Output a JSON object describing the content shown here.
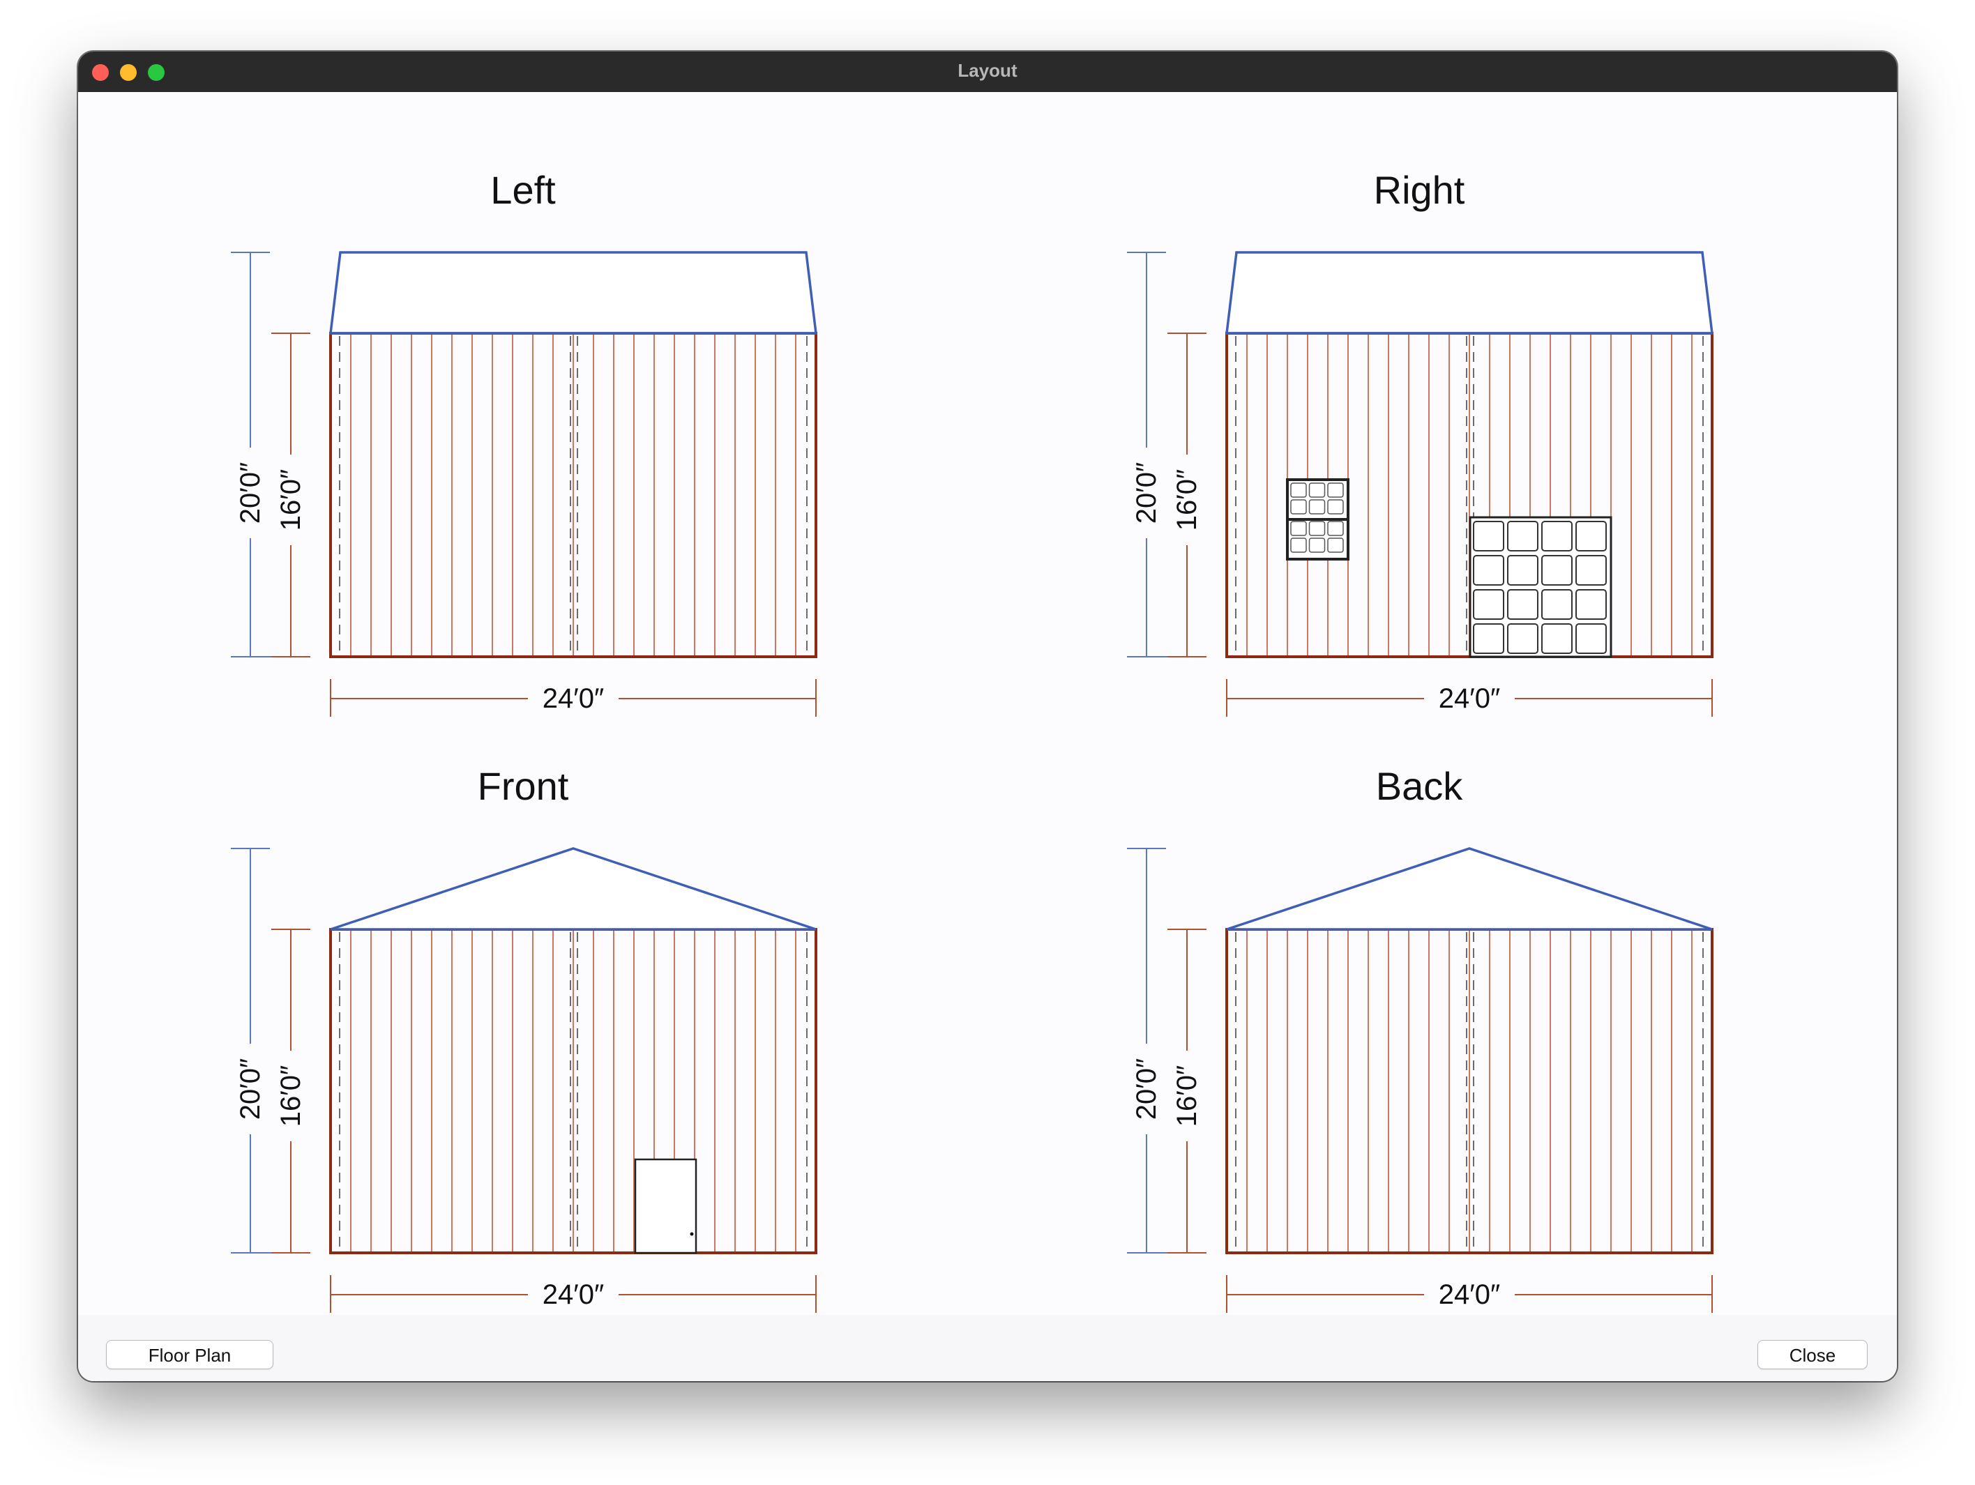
{
  "window": {
    "title": "Layout"
  },
  "colors": {
    "roof": "#3f5fb6",
    "wall": "#8b2a10",
    "siding": "#c0573a",
    "dim_wall": "#b05030",
    "dim_overall": "#5a78bd",
    "bg_canvas": "#fcfcfe"
  },
  "elevations": [
    {
      "label": "Left",
      "roof": "gable-end-flat",
      "overall_height": "20′0″",
      "wall_height": "16′0″",
      "width": "24′0″"
    },
    {
      "label": "Right",
      "roof": "gable-end-flat",
      "overall_height": "20′0″",
      "wall_height": "16′0″",
      "width": "24′0″"
    },
    {
      "label": "Front",
      "roof": "gable-peak",
      "overall_height": "20′0″",
      "wall_height": "16′0″",
      "width": "24′0″"
    },
    {
      "label": "Back",
      "roof": "gable-peak",
      "overall_height": "20′0″",
      "wall_height": "16′0″",
      "width": "24′0″"
    }
  ],
  "buttons": {
    "floor_plan": "Floor Plan",
    "close": "Close"
  }
}
